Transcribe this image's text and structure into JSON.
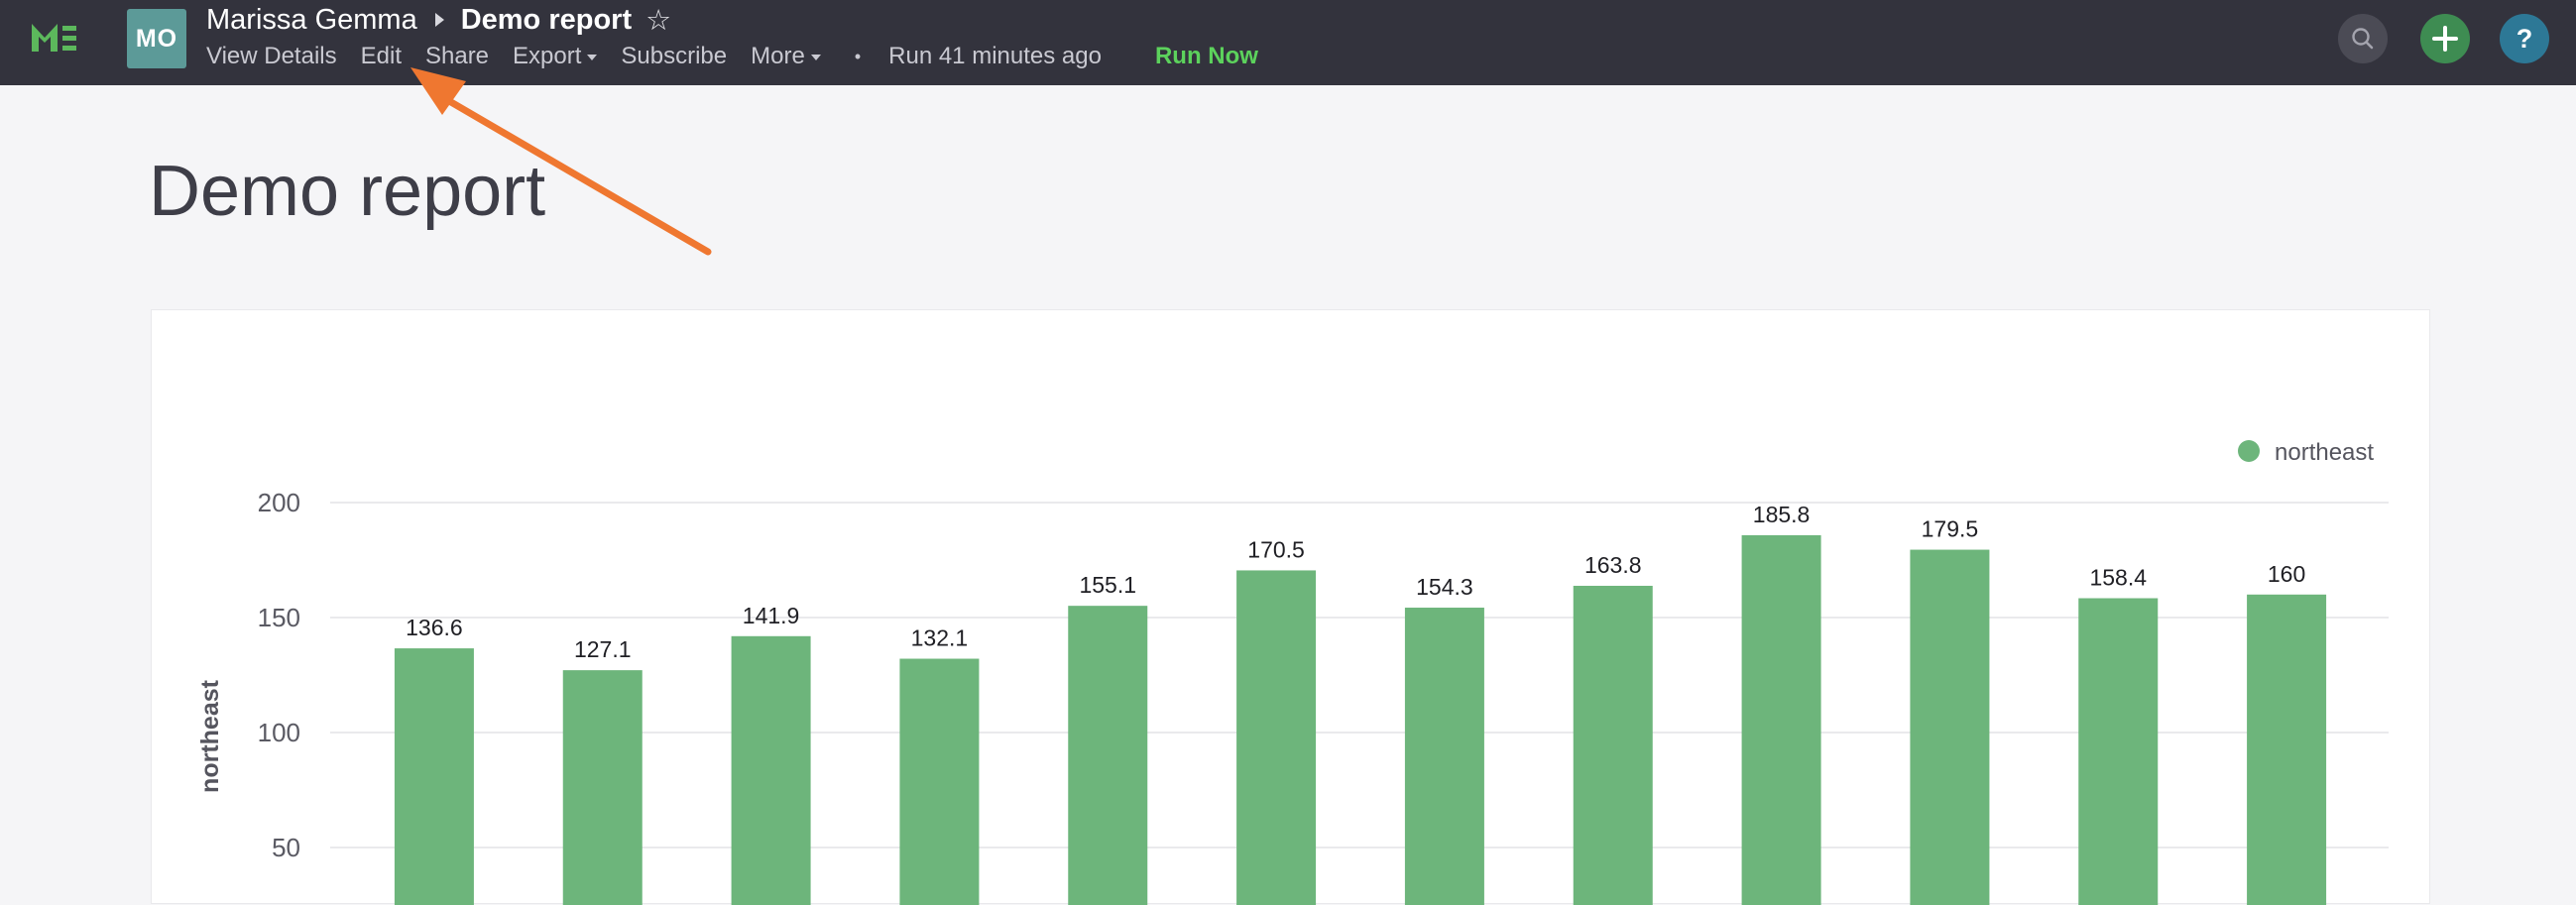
{
  "header": {
    "avatar_initials": "MO",
    "owner_name": "Marissa Gemma",
    "report_title": "Demo report",
    "actions": {
      "view_details": "View Details",
      "edit": "Edit",
      "share": "Share",
      "export": "Export",
      "subscribe": "Subscribe",
      "more": "More",
      "separator": "•",
      "run_status": "Run 41 minutes ago",
      "run_now": "Run Now"
    },
    "help_label": "?"
  },
  "page": {
    "title": "Demo report"
  },
  "icons": {
    "logo": "mode-logo-icon",
    "star": "star-icon",
    "search": "search-icon",
    "add": "plus-icon",
    "help": "help-icon",
    "annotation": "arrow-annotation"
  },
  "colors": {
    "topbar": "#33333d",
    "accent_green": "#5cd25c",
    "bar": "#6db57b",
    "annotation_arrow": "#ef7730"
  },
  "chart_data": {
    "type": "bar",
    "categories": [
      "",
      "",
      "",
      "",
      "",
      "",
      "",
      "",
      "",
      "",
      "",
      ""
    ],
    "series": [
      {
        "name": "northeast",
        "values": [
          136.6,
          127.1,
          141.9,
          132.1,
          155.1,
          170.5,
          154.3,
          163.8,
          185.8,
          179.5,
          158.4,
          160
        ]
      }
    ],
    "value_labels": [
      "136.6",
      "127.1",
      "141.9",
      "132.1",
      "155.1",
      "170.5",
      "154.3",
      "163.8",
      "185.8",
      "179.5",
      "158.4",
      "160"
    ],
    "ylabel": "northeast",
    "yticks": [
      50,
      100,
      150,
      200
    ],
    "ytick_labels": [
      "50",
      "100",
      "150",
      "200"
    ],
    "ylim": [
      0,
      200
    ],
    "visible_y_range": [
      40,
      210
    ],
    "legend": "top-right",
    "grid": true
  }
}
